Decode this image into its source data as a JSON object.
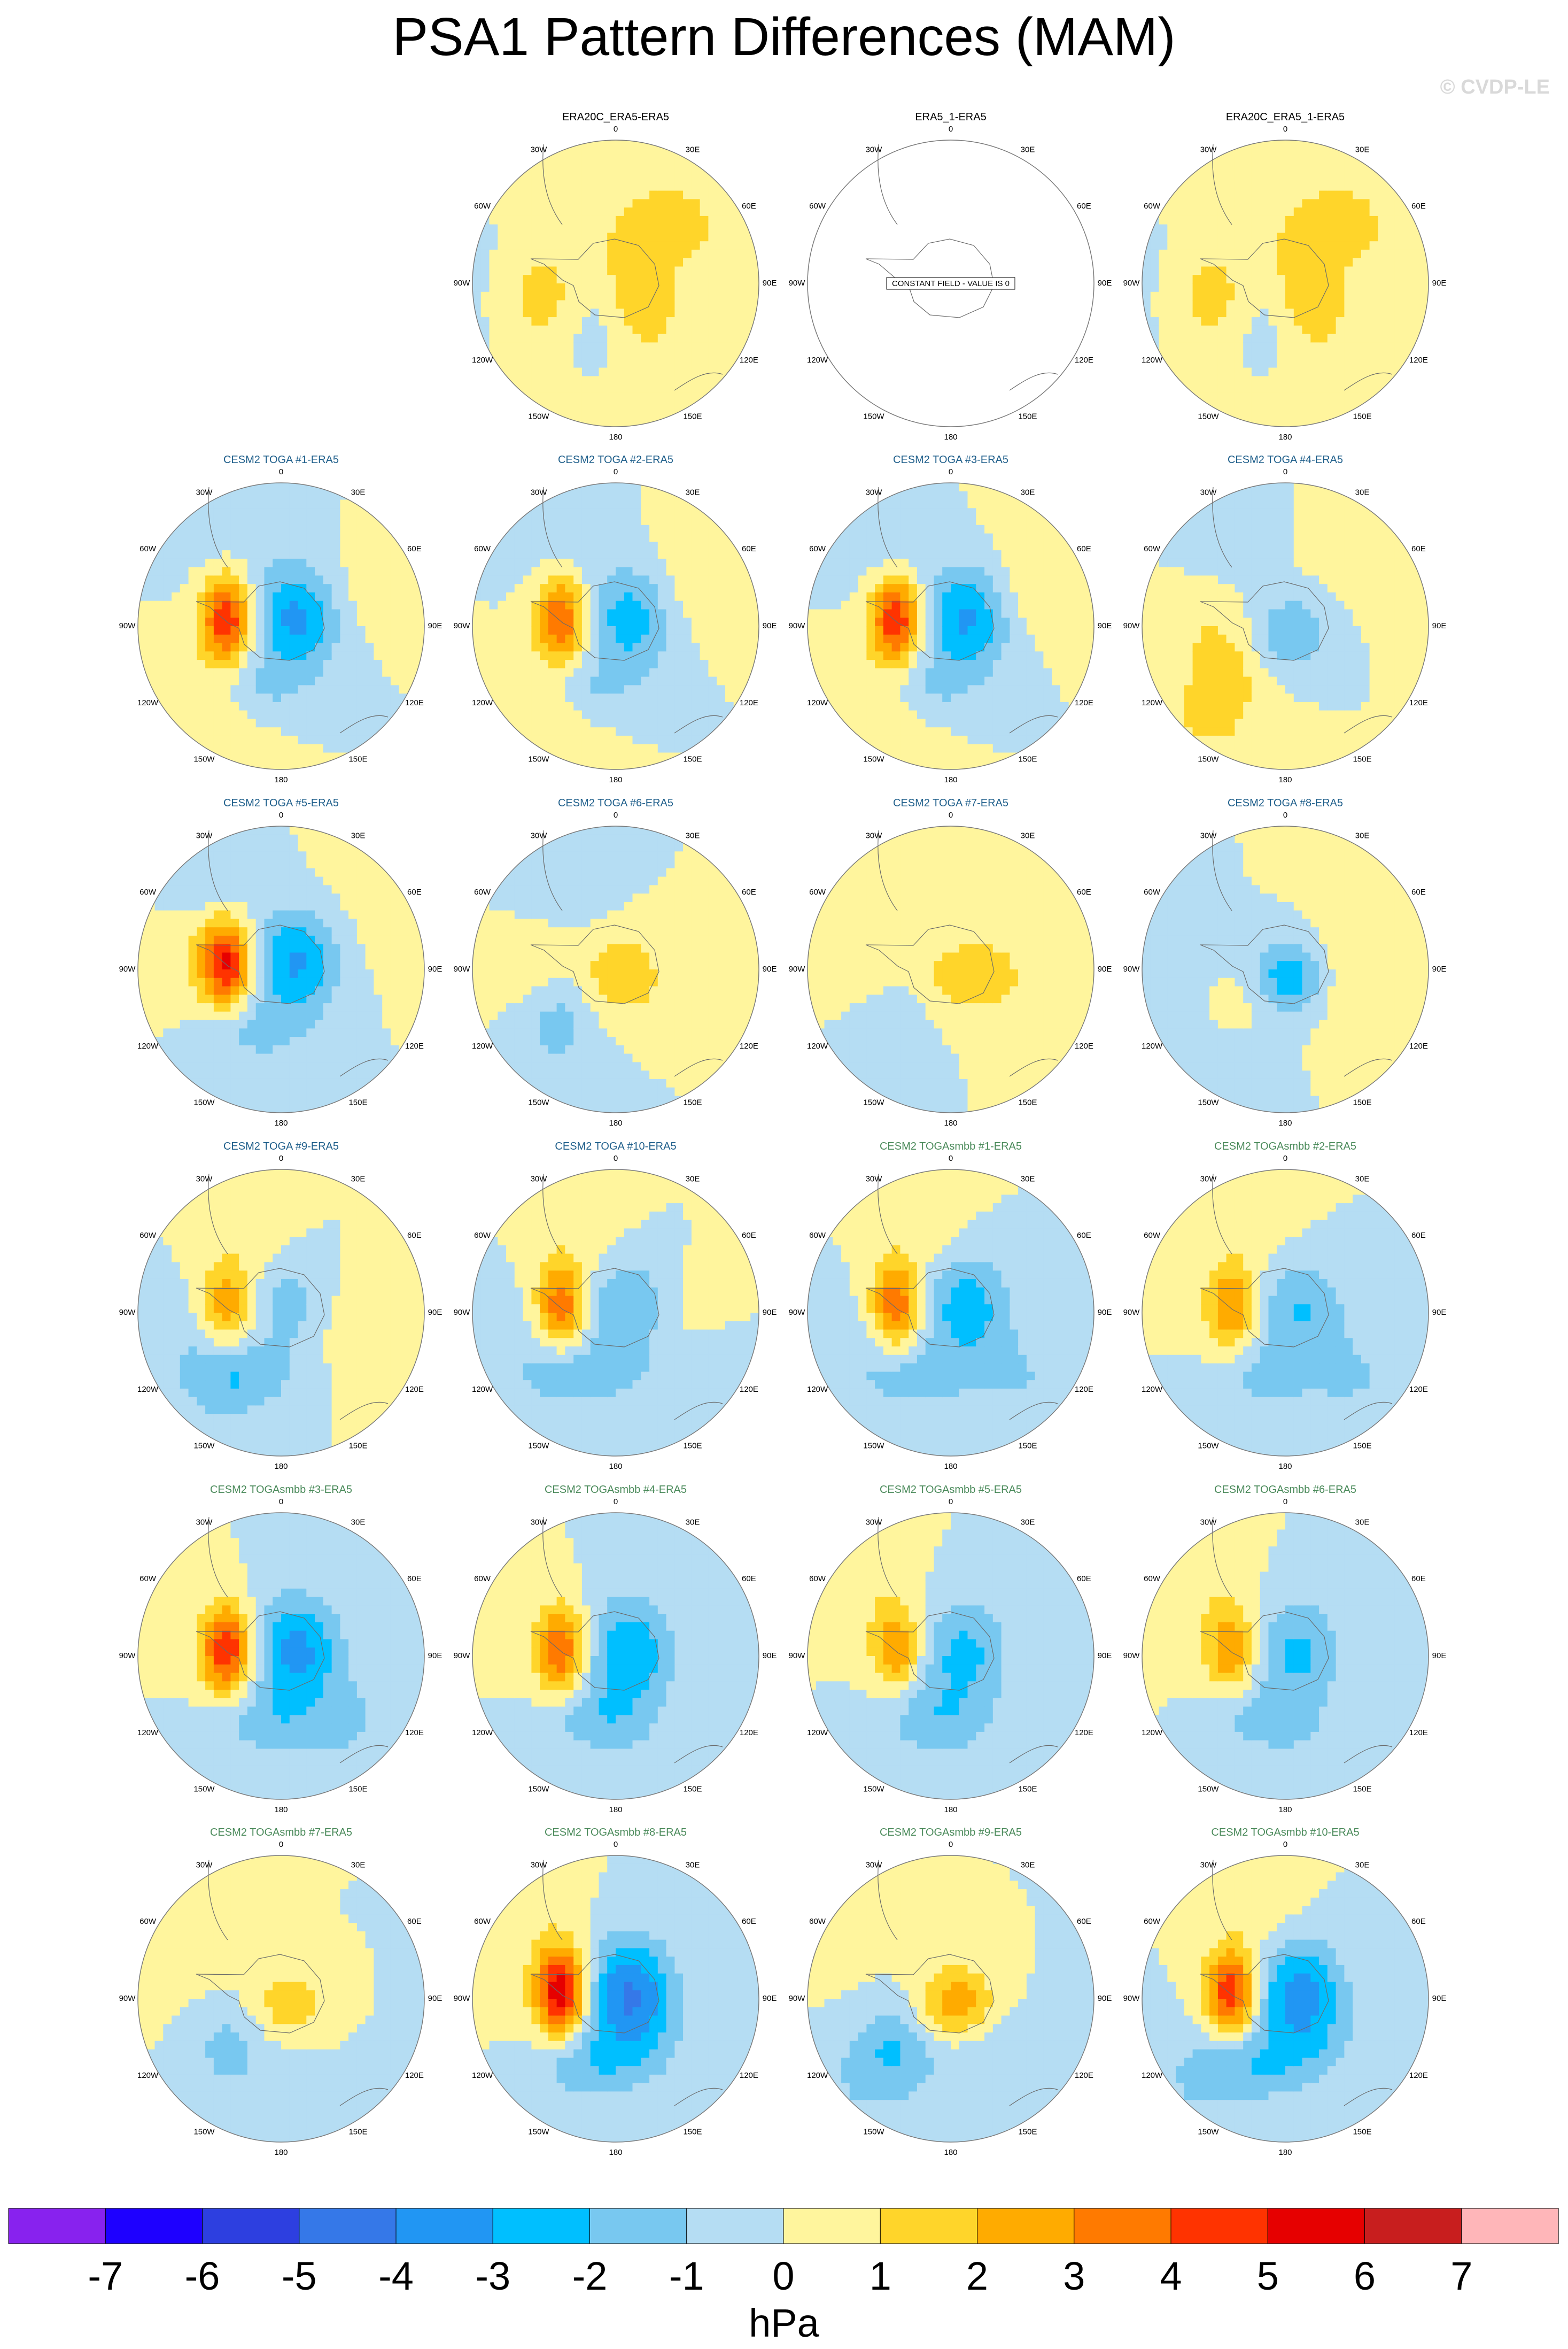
{
  "figure": {
    "title": "PSA1 Pattern Differences (MAM)",
    "watermark": "© CVDP-LE"
  },
  "longitude_labels": [
    "0",
    "30E",
    "60E",
    "90E",
    "120E",
    "150E",
    "180",
    "150W",
    "120W",
    "90W",
    "60W",
    "30W"
  ],
  "panels": [
    [
      null,
      {
        "title": "ERA20C_ERA5-ERA5",
        "title_color": "#000000",
        "kind": "weak",
        "seed": 1
      },
      {
        "title": "ERA5_1-ERA5",
        "title_color": "#000000",
        "kind": "constant",
        "seed": 2,
        "constant_label": "CONSTANT FIELD - VALUE IS 0"
      },
      {
        "title": "ERA20C_ERA5_1-ERA5",
        "title_color": "#000000",
        "kind": "weak",
        "seed": 1
      }
    ],
    [
      {
        "title": "CESM2 TOGA #1-ERA5",
        "title_color": "#1f5f8b",
        "kind": "dipole",
        "amp": 5,
        "seed": 11
      },
      {
        "title": "CESM2 TOGA #2-ERA5",
        "title_color": "#1f5f8b",
        "kind": "dipole",
        "amp": 4,
        "seed": 12
      },
      {
        "title": "CESM2 TOGA #3-ERA5",
        "title_color": "#1f5f8b",
        "kind": "dipole",
        "amp": 5,
        "seed": 13
      },
      {
        "title": "CESM2 TOGA #4-ERA5",
        "title_color": "#1f5f8b",
        "kind": "center",
        "amp": -2,
        "seed": 14
      }
    ],
    [
      {
        "title": "CESM2 TOGA #5-ERA5",
        "title_color": "#1f5f8b",
        "kind": "dipole",
        "amp": 5,
        "seed": 15
      },
      {
        "title": "CESM2 TOGA #6-ERA5",
        "title_color": "#1f5f8b",
        "kind": "center",
        "amp": 2,
        "seed": 16
      },
      {
        "title": "CESM2 TOGA #7-ERA5",
        "title_color": "#1f5f8b",
        "kind": "center",
        "amp": 1,
        "seed": 17
      },
      {
        "title": "CESM2 TOGA #8-ERA5",
        "title_color": "#1f5f8b",
        "kind": "center",
        "amp": -3,
        "seed": 18
      }
    ],
    [
      {
        "title": "CESM2 TOGA #9-ERA5",
        "title_color": "#1f5f8b",
        "kind": "dipole",
        "amp": 3,
        "seed": 19
      },
      {
        "title": "CESM2 TOGA #10-ERA5",
        "title_color": "#1f5f8b",
        "kind": "dipole",
        "amp": 4,
        "seed": 20
      },
      {
        "title": "CESM2 TOGAsmbb #1-ERA5",
        "title_color": "#4a8a5a",
        "kind": "dipole",
        "amp": 4,
        "seed": 21
      },
      {
        "title": "CESM2 TOGAsmbb #2-ERA5",
        "title_color": "#4a8a5a",
        "kind": "dipole",
        "amp": 3,
        "seed": 22
      }
    ],
    [
      {
        "title": "CESM2 TOGAsmbb #3-ERA5",
        "title_color": "#4a8a5a",
        "kind": "dipole",
        "amp": 5,
        "seed": 23
      },
      {
        "title": "CESM2 TOGAsmbb #4-ERA5",
        "title_color": "#4a8a5a",
        "kind": "dipole",
        "amp": 4,
        "seed": 24
      },
      {
        "title": "CESM2 TOGAsmbb #5-ERA5",
        "title_color": "#4a8a5a",
        "kind": "dipole",
        "amp": 3,
        "seed": 25
      },
      {
        "title": "CESM2 TOGAsmbb #6-ERA5",
        "title_color": "#4a8a5a",
        "kind": "dipole",
        "amp": 3,
        "seed": 26
      }
    ],
    [
      {
        "title": "CESM2 TOGAsmbb #7-ERA5",
        "title_color": "#4a8a5a",
        "kind": "center",
        "amp": 2,
        "seed": 27
      },
      {
        "title": "CESM2 TOGAsmbb #8-ERA5",
        "title_color": "#4a8a5a",
        "kind": "dipole",
        "amp": 6,
        "seed": 28
      },
      {
        "title": "CESM2 TOGAsmbb #9-ERA5",
        "title_color": "#4a8a5a",
        "kind": "center",
        "amp": 3,
        "seed": 29
      },
      {
        "title": "CESM2 TOGAsmbb #10-ERA5",
        "title_color": "#4a8a5a",
        "kind": "dipole",
        "amp": 5,
        "seed": 30
      }
    ]
  ],
  "colorbar": {
    "unit": "hPa",
    "tick_labels": [
      "-7",
      "-6",
      "-5",
      "-4",
      "-3",
      "-2",
      "-1",
      "0",
      "1",
      "2",
      "3",
      "4",
      "5",
      "6",
      "7"
    ],
    "colors": [
      "#8822ee",
      "#1e00ff",
      "#2d3fe0",
      "#3578e8",
      "#2196f3",
      "#00bfff",
      "#78c8f0",
      "#b5ddf3",
      "#fff59d",
      "#ffd52a",
      "#ffab00",
      "#ff7a00",
      "#ff3300",
      "#e60000",
      "#c81e1e",
      "#ffb6b9"
    ]
  }
}
